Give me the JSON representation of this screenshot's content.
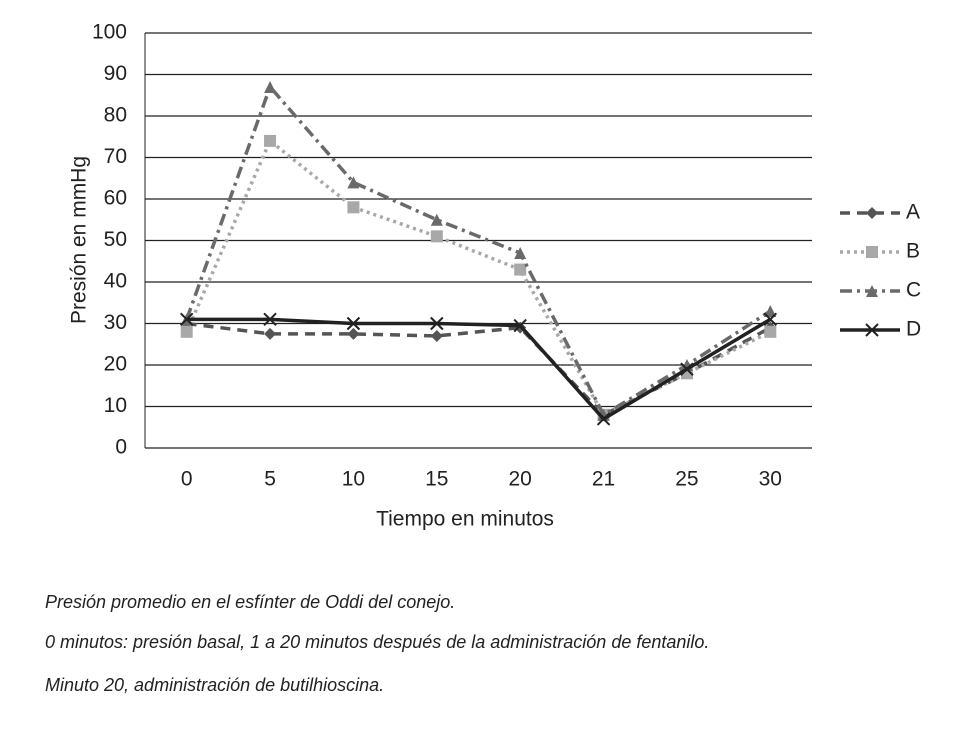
{
  "chart_data": {
    "type": "line",
    "y_label": "Presión en mmHg",
    "x_label": "Tiempo en minutos",
    "categories": [
      "0",
      "5",
      "10",
      "15",
      "20",
      "21",
      "25",
      "30"
    ],
    "series": [
      {
        "name": "A",
        "color": "#555555",
        "dash": "10 7",
        "marker": "diamond",
        "values": [
          30,
          27.5,
          27.5,
          27,
          29,
          8,
          18,
          29
        ]
      },
      {
        "name": "B",
        "color": "#a8a8a8",
        "dash": "3 4",
        "marker": "square",
        "values": [
          28,
          74,
          58,
          51,
          43,
          8,
          18,
          28
        ]
      },
      {
        "name": "C",
        "color": "#6a6a6a",
        "dash": "12 5 3 5",
        "marker": "triangle",
        "values": [
          31,
          87,
          64,
          55,
          47,
          8,
          20,
          33
        ]
      },
      {
        "name": "D",
        "color": "#222222",
        "dash": "",
        "marker": "x",
        "values": [
          31,
          31,
          30,
          30,
          29.5,
          7,
          19,
          31
        ]
      }
    ],
    "ylim": [
      0,
      100
    ],
    "yticks": [
      0,
      10,
      20,
      30,
      40,
      50,
      60,
      70,
      80,
      90,
      100
    ],
    "grid": true,
    "legend": "right",
    "caption": [
      "Presión promedio en el esfínter de Oddi del conejo.",
      "0 minutos: presión basal, 1 a 20 minutos después de la administración de fentanilo.",
      "Minuto 20, administración de butilhioscina."
    ]
  }
}
